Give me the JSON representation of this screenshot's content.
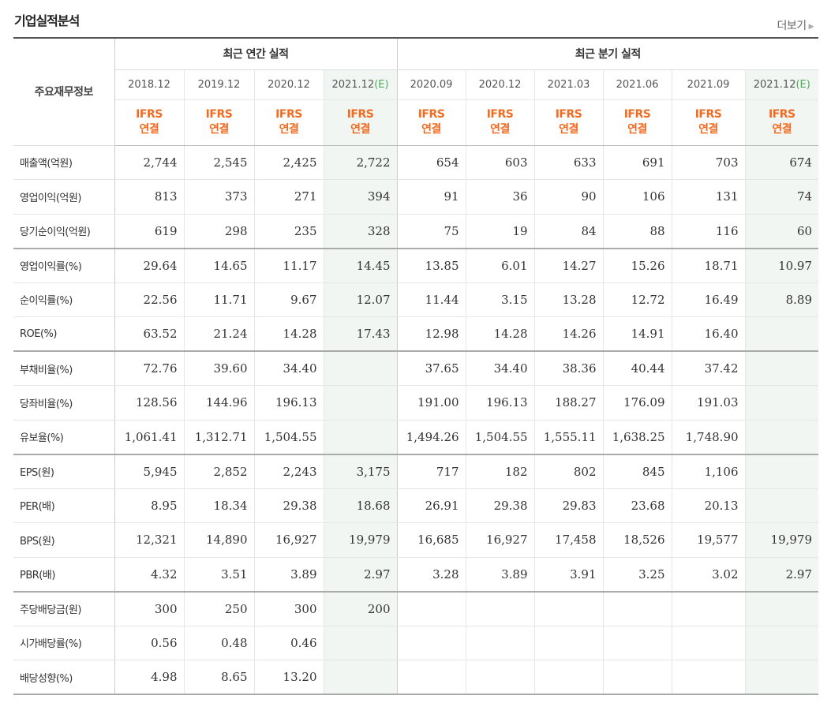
{
  "title": "기업실적분석",
  "more_label": "더보기",
  "header": {
    "label_col": "주요재무정보",
    "annual_group": "최근 연간 실적",
    "quarter_group": "최근 분기 실적",
    "periods": [
      "2018.12",
      "2019.12",
      "2020.12",
      "2021.12",
      "2020.09",
      "2020.12",
      "2021.03",
      "2021.06",
      "2021.09",
      "2021.12"
    ],
    "estimate_suffix": "(E)",
    "ifrs_line1": "IFRS",
    "ifrs_line2": "연결"
  },
  "rows": [
    {
      "label": "매출액(억원)",
      "values": [
        "2,744",
        "2,545",
        "2,425",
        "2,722",
        "654",
        "603",
        "633",
        "691",
        "703",
        "674"
      ]
    },
    {
      "label": "영업이익(억원)",
      "values": [
        "813",
        "373",
        "271",
        "394",
        "91",
        "36",
        "90",
        "106",
        "131",
        "74"
      ]
    },
    {
      "label": "당기순이익(억원)",
      "values": [
        "619",
        "298",
        "235",
        "328",
        "75",
        "19",
        "84",
        "88",
        "116",
        "60"
      ]
    },
    {
      "label": "영업이익률(%)",
      "values": [
        "29.64",
        "14.65",
        "11.17",
        "14.45",
        "13.85",
        "6.01",
        "14.27",
        "15.26",
        "18.71",
        "10.97"
      ]
    },
    {
      "label": "순이익률(%)",
      "values": [
        "22.56",
        "11.71",
        "9.67",
        "12.07",
        "11.44",
        "3.15",
        "13.28",
        "12.72",
        "16.49",
        "8.89"
      ]
    },
    {
      "label": "ROE(%)",
      "values": [
        "63.52",
        "21.24",
        "14.28",
        "17.43",
        "12.98",
        "14.28",
        "14.26",
        "14.91",
        "16.40",
        ""
      ]
    },
    {
      "label": "부채비율(%)",
      "values": [
        "72.76",
        "39.60",
        "34.40",
        "",
        "37.65",
        "34.40",
        "38.36",
        "40.44",
        "37.42",
        ""
      ]
    },
    {
      "label": "당좌비율(%)",
      "values": [
        "128.56",
        "144.96",
        "196.13",
        "",
        "191.00",
        "196.13",
        "188.27",
        "176.09",
        "191.03",
        ""
      ]
    },
    {
      "label": "유보율(%)",
      "values": [
        "1,061.41",
        "1,312.71",
        "1,504.55",
        "",
        "1,494.26",
        "1,504.55",
        "1,555.11",
        "1,638.25",
        "1,748.90",
        ""
      ]
    },
    {
      "label": "EPS(원)",
      "values": [
        "5,945",
        "2,852",
        "2,243",
        "3,175",
        "717",
        "182",
        "802",
        "845",
        "1,106",
        ""
      ]
    },
    {
      "label": "PER(배)",
      "values": [
        "8.95",
        "18.34",
        "29.38",
        "18.68",
        "26.91",
        "29.38",
        "29.83",
        "23.68",
        "20.13",
        ""
      ]
    },
    {
      "label": "BPS(원)",
      "values": [
        "12,321",
        "14,890",
        "16,927",
        "19,979",
        "16,685",
        "16,927",
        "17,458",
        "18,526",
        "19,577",
        "19,979"
      ]
    },
    {
      "label": "PBR(배)",
      "values": [
        "4.32",
        "3.51",
        "3.89",
        "2.97",
        "3.28",
        "3.89",
        "3.91",
        "3.25",
        "3.02",
        "2.97"
      ]
    },
    {
      "label": "주당배당금(원)",
      "values": [
        "300",
        "250",
        "300",
        "200",
        "",
        "",
        "",
        "",
        "",
        ""
      ]
    },
    {
      "label": "시가배당률(%)",
      "values": [
        "0.56",
        "0.48",
        "0.46",
        "",
        "",
        "",
        "",
        "",
        "",
        ""
      ]
    },
    {
      "label": "배당성향(%)",
      "values": [
        "4.98",
        "8.65",
        "13.20",
        "",
        "",
        "",
        "",
        "",
        "",
        ""
      ]
    }
  ]
}
